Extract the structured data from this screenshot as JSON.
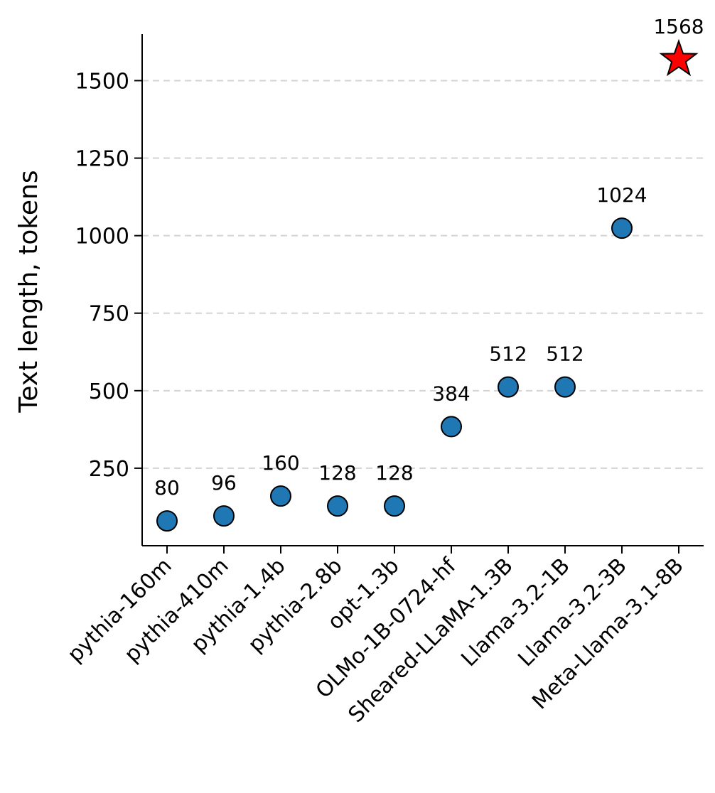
{
  "chart_data": {
    "type": "scatter",
    "title": "",
    "xlabel": "",
    "ylabel": "Text length, tokens",
    "categories": [
      "pythia-160m",
      "pythia-410m",
      "pythia-1.4b",
      "pythia-2.8b",
      "opt-1.3b",
      "OLMo-1B-0724-hf",
      "Sheared-LLaMA-1.3B",
      "Llama-3.2-1B",
      "Llama-3.2-3B",
      "Meta-Llama-3.1-8B"
    ],
    "values": [
      80,
      96,
      160,
      128,
      128,
      384,
      512,
      512,
      1024,
      1568
    ],
    "data_labels": [
      "80",
      "96",
      "160",
      "128",
      "128",
      "384",
      "512",
      "512",
      "1024",
      "1568"
    ],
    "markers": [
      "circle",
      "circle",
      "circle",
      "circle",
      "circle",
      "circle",
      "circle",
      "circle",
      "circle",
      "star"
    ],
    "ylim": [
      0,
      1650
    ],
    "yticks": [
      250,
      500,
      750,
      1000,
      1250,
      1500
    ],
    "ytick_labels": [
      "250",
      "500",
      "750",
      "1000",
      "1250",
      "1500"
    ],
    "grid": "horizontal-dashed",
    "colors": {
      "circle_fill": "#1f77b4",
      "star_fill": "#ff0000",
      "marker_edge": "#000000",
      "grid": "#d3d3d3"
    }
  }
}
